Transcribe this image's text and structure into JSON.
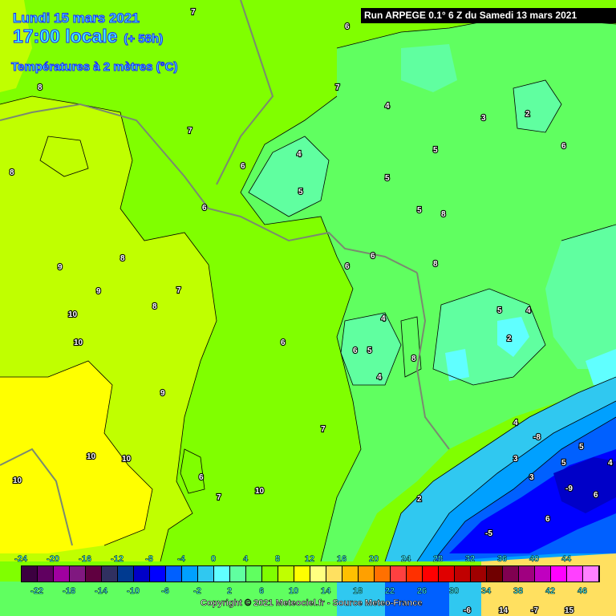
{
  "header": {
    "date": "Lundi 15 mars 2021",
    "time": "17:00 locale",
    "offset": "(+ 58h)",
    "variable": "Températures à 2 mètres (°C)",
    "run": "Run ARPEGE 0.1° 6 Z du Samedi 13 mars 2021"
  },
  "copyright": "Copyright © 2021 Meteociel.fr - Source Meteo-France",
  "legend": {
    "top_labels": [
      "-24",
      "-20",
      "-16",
      "-12",
      "-8",
      "-4",
      "0",
      "4",
      "8",
      "12",
      "16",
      "20",
      "24",
      "28",
      "32",
      "36",
      "40",
      "44"
    ],
    "bottom_labels": [
      "-22",
      "-18",
      "-14",
      "-10",
      "-6",
      "-2",
      "2",
      "6",
      "10",
      "14",
      "18",
      "22",
      "26",
      "30",
      "34",
      "38",
      "42",
      "46"
    ],
    "colors": [
      "#3c0040",
      "#600060",
      "#a000a0",
      "#801880",
      "#600040",
      "#303060",
      "#003a90",
      "#0000c8",
      "#0000ff",
      "#0060ff",
      "#00a0ff",
      "#30c8f0",
      "#60ffff",
      "#60ffa0",
      "#60ff60",
      "#80ff00",
      "#c0ff00",
      "#ffff00",
      "#ffff80",
      "#ffe060",
      "#ffc000",
      "#ffa000",
      "#ff7000",
      "#ff4040",
      "#ff3000",
      "#ff0000",
      "#e00000",
      "#c00000",
      "#a00000",
      "#700000",
      "#800050",
      "#a00080",
      "#c000c0",
      "#ff00ff",
      "#ff40ff",
      "#ff80ff"
    ]
  },
  "map_labels": [
    "7",
    "6",
    "8",
    "8",
    "7",
    "7",
    "6",
    "6",
    "9",
    "8",
    "7",
    "10",
    "10",
    "9",
    "8",
    "6",
    "6",
    "5",
    "4",
    "5",
    "4",
    "5",
    "5",
    "6",
    "6",
    "8",
    "8",
    "4",
    "4",
    "2",
    "3",
    "2",
    "4",
    "5",
    "5",
    "6",
    "7",
    "8",
    "10",
    "10",
    "9",
    "10",
    "10",
    "6",
    "7",
    "2",
    "3",
    "3",
    "4",
    "5",
    "5",
    "4",
    "6",
    "6",
    "-8",
    "-7",
    "-6",
    "-9",
    "-5",
    "15",
    "14"
  ]
}
